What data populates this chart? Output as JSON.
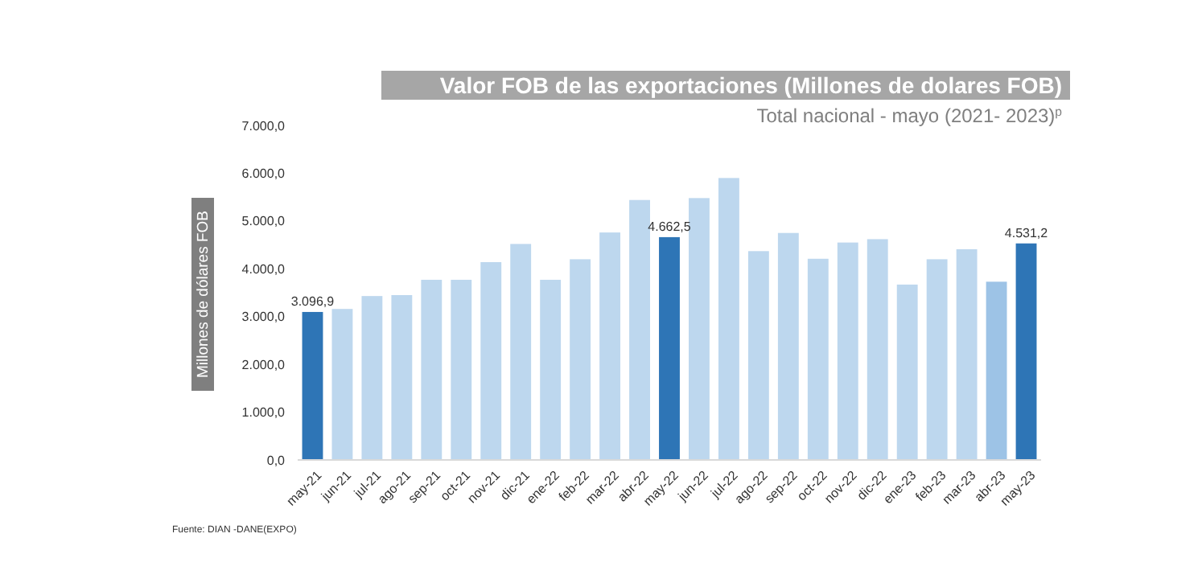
{
  "chart_data": {
    "type": "bar",
    "title": "Valor FOB de las exportaciones (Millones de dolares FOB)",
    "subtitle": "Total nacional - mayo (2021- 2023)$^{p}$",
    "ylabel": "Millones de dólares FOB",
    "annotations": [
      "Fuente: DIAN -DANE(EXPO)"
    ],
    "categories": [
      "may-21",
      "jun-21",
      "jul-21",
      "ago-21",
      "sep-21",
      "oct-21",
      "nov-21",
      "dic-21",
      "ene-22",
      "feb-22",
      "mar-22",
      "abr-22",
      "may-22",
      "jun-22",
      "jul-22",
      "ago-22",
      "sep-22",
      "oct-22",
      "nov-22",
      "dic-22",
      "ene-23",
      "feb-23",
      "mar-23",
      "abr-23",
      "may-23"
    ],
    "values": [
      3096.9,
      3160,
      3430,
      3450,
      3770,
      3770,
      4140,
      4520,
      3770,
      4200,
      4760,
      5440,
      4662.5,
      5480,
      5900,
      4370,
      4750,
      4210,
      4550,
      4620,
      3670,
      4200,
      4410,
      3730,
      4531.2
    ],
    "colors": [
      "#2e75b6",
      "#bdd7ee",
      "#bdd7ee",
      "#bdd7ee",
      "#bdd7ee",
      "#bdd7ee",
      "#bdd7ee",
      "#bdd7ee",
      "#bdd7ee",
      "#bdd7ee",
      "#bdd7ee",
      "#bdd7ee",
      "#2e75b6",
      "#bdd7ee",
      "#bdd7ee",
      "#bdd7ee",
      "#bdd7ee",
      "#bdd7ee",
      "#bdd7ee",
      "#bdd7ee",
      "#bdd7ee",
      "#bdd7ee",
      "#bdd7ee",
      "#9dc3e6",
      "#2e75b6"
    ],
    "value_labels": [
      "3.096,9",
      null,
      null,
      null,
      null,
      null,
      null,
      null,
      null,
      null,
      null,
      null,
      "4.662,5",
      null,
      null,
      null,
      null,
      null,
      null,
      null,
      null,
      null,
      null,
      null,
      "4.531,2"
    ],
    "ylim": [
      0,
      7000
    ],
    "yticks": [
      {
        "value": 0,
        "label": "0,0"
      },
      {
        "value": 1000,
        "label": "1.000,0"
      },
      {
        "value": 2000,
        "label": "2.000,0"
      },
      {
        "value": 3000,
        "label": "3.000,0"
      },
      {
        "value": 4000,
        "label": "4.000,0"
      },
      {
        "value": 5000,
        "label": "5.000,0"
      },
      {
        "value": 6000,
        "label": "6.000,0"
      },
      {
        "value": 7000,
        "label": "7.000,0"
      }
    ]
  }
}
